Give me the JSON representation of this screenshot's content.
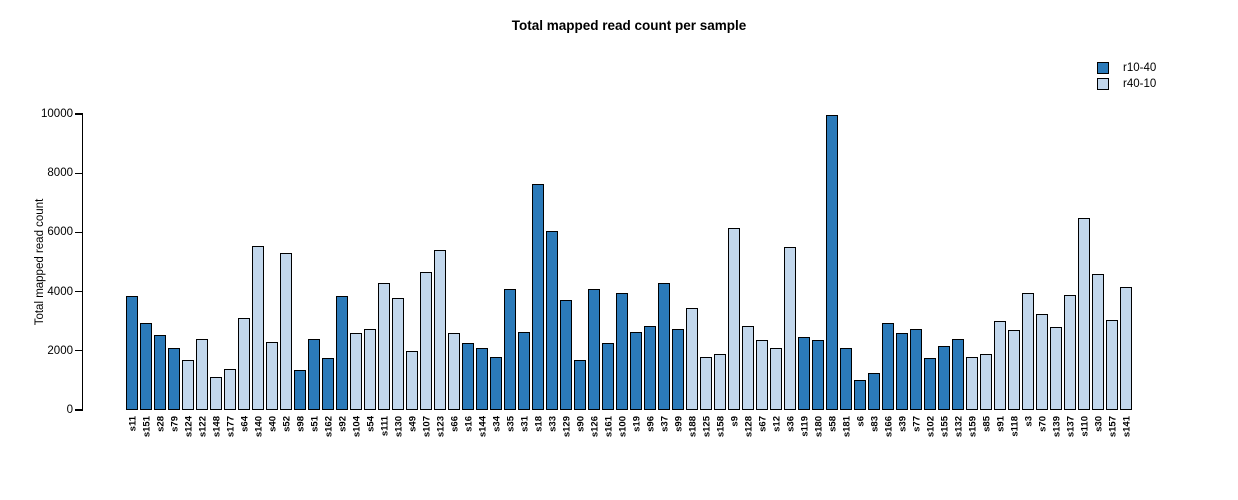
{
  "chart_data": {
    "type": "bar",
    "title": "Total mapped read count per sample",
    "xlabel": "",
    "ylabel": "Total mapped read count",
    "ylim": [
      0,
      10000
    ],
    "yticks": [
      0,
      2000,
      4000,
      6000,
      8000,
      10000
    ],
    "grid": false,
    "legend_position": "top-right",
    "series": [
      {
        "name": "r10-40",
        "color": "#2b7ab9"
      },
      {
        "name": "r40-10",
        "color": "#c2d7ec"
      }
    ],
    "bars": [
      {
        "label": "s11",
        "value": 3850,
        "series": "r10-40"
      },
      {
        "label": "s151",
        "value": 2950,
        "series": "r10-40"
      },
      {
        "label": "s28",
        "value": 2550,
        "series": "r10-40"
      },
      {
        "label": "s79",
        "value": 2100,
        "series": "r10-40"
      },
      {
        "label": "s124",
        "value": 1700,
        "series": "r40-10"
      },
      {
        "label": "s122",
        "value": 2400,
        "series": "r40-10"
      },
      {
        "label": "s148",
        "value": 1100,
        "series": "r40-10"
      },
      {
        "label": "s177",
        "value": 1400,
        "series": "r40-10"
      },
      {
        "label": "s64",
        "value": 3100,
        "series": "r40-10"
      },
      {
        "label": "s140",
        "value": 5550,
        "series": "r40-10"
      },
      {
        "label": "s40",
        "value": 2300,
        "series": "r40-10"
      },
      {
        "label": "s52",
        "value": 5300,
        "series": "r40-10"
      },
      {
        "label": "s98",
        "value": 1350,
        "series": "r10-40"
      },
      {
        "label": "s51",
        "value": 2400,
        "series": "r10-40"
      },
      {
        "label": "s162",
        "value": 1750,
        "series": "r10-40"
      },
      {
        "label": "s92",
        "value": 3850,
        "series": "r10-40"
      },
      {
        "label": "s104",
        "value": 2600,
        "series": "r40-10"
      },
      {
        "label": "s54",
        "value": 2750,
        "series": "r40-10"
      },
      {
        "label": "s111",
        "value": 4300,
        "series": "r40-10"
      },
      {
        "label": "s130",
        "value": 3800,
        "series": "r40-10"
      },
      {
        "label": "s49",
        "value": 2000,
        "series": "r40-10"
      },
      {
        "label": "s107",
        "value": 4650,
        "series": "r40-10"
      },
      {
        "label": "s123",
        "value": 5400,
        "series": "r40-10"
      },
      {
        "label": "s66",
        "value": 2600,
        "series": "r40-10"
      },
      {
        "label": "s16",
        "value": 2250,
        "series": "r10-40"
      },
      {
        "label": "s144",
        "value": 2100,
        "series": "r10-40"
      },
      {
        "label": "s34",
        "value": 1800,
        "series": "r10-40"
      },
      {
        "label": "s35",
        "value": 4100,
        "series": "r10-40"
      },
      {
        "label": "s31",
        "value": 2650,
        "series": "r10-40"
      },
      {
        "label": "s18",
        "value": 7650,
        "series": "r10-40"
      },
      {
        "label": "s33",
        "value": 6050,
        "series": "r10-40"
      },
      {
        "label": "s129",
        "value": 3700,
        "series": "r10-40"
      },
      {
        "label": "s90",
        "value": 1700,
        "series": "r10-40"
      },
      {
        "label": "s126",
        "value": 4100,
        "series": "r10-40"
      },
      {
        "label": "s161",
        "value": 2250,
        "series": "r10-40"
      },
      {
        "label": "s100",
        "value": 3950,
        "series": "r10-40"
      },
      {
        "label": "s19",
        "value": 2650,
        "series": "r10-40"
      },
      {
        "label": "s96",
        "value": 2850,
        "series": "r10-40"
      },
      {
        "label": "s37",
        "value": 4300,
        "series": "r10-40"
      },
      {
        "label": "s99",
        "value": 2750,
        "series": "r10-40"
      },
      {
        "label": "s188",
        "value": 3450,
        "series": "r40-10"
      },
      {
        "label": "s125",
        "value": 1800,
        "series": "r40-10"
      },
      {
        "label": "s158",
        "value": 1900,
        "series": "r40-10"
      },
      {
        "label": "s9",
        "value": 6150,
        "series": "r40-10"
      },
      {
        "label": "s128",
        "value": 2850,
        "series": "r40-10"
      },
      {
        "label": "s67",
        "value": 2350,
        "series": "r40-10"
      },
      {
        "label": "s12",
        "value": 2100,
        "series": "r40-10"
      },
      {
        "label": "s36",
        "value": 5500,
        "series": "r40-10"
      },
      {
        "label": "s119",
        "value": 2450,
        "series": "r10-40"
      },
      {
        "label": "s180",
        "value": 2350,
        "series": "r10-40"
      },
      {
        "label": "s58",
        "value": 9950,
        "series": "r10-40"
      },
      {
        "label": "s181",
        "value": 2100,
        "series": "r10-40"
      },
      {
        "label": "s6",
        "value": 1000,
        "series": "r10-40"
      },
      {
        "label": "s83",
        "value": 1250,
        "series": "r10-40"
      },
      {
        "label": "s166",
        "value": 2950,
        "series": "r10-40"
      },
      {
        "label": "s39",
        "value": 2600,
        "series": "r10-40"
      },
      {
        "label": "s77",
        "value": 2750,
        "series": "r10-40"
      },
      {
        "label": "s102",
        "value": 1750,
        "series": "r10-40"
      },
      {
        "label": "s155",
        "value": 2150,
        "series": "r10-40"
      },
      {
        "label": "s132",
        "value": 2400,
        "series": "r10-40"
      },
      {
        "label": "s159",
        "value": 1800,
        "series": "r40-10"
      },
      {
        "label": "s85",
        "value": 1900,
        "series": "r40-10"
      },
      {
        "label": "s91",
        "value": 3000,
        "series": "r40-10"
      },
      {
        "label": "s118",
        "value": 2700,
        "series": "r40-10"
      },
      {
        "label": "s3",
        "value": 3950,
        "series": "r40-10"
      },
      {
        "label": "s70",
        "value": 3250,
        "series": "r40-10"
      },
      {
        "label": "s139",
        "value": 2800,
        "series": "r40-10"
      },
      {
        "label": "s137",
        "value": 3900,
        "series": "r40-10"
      },
      {
        "label": "s110",
        "value": 6500,
        "series": "r40-10"
      },
      {
        "label": "s30",
        "value": 4600,
        "series": "r40-10"
      },
      {
        "label": "s157",
        "value": 3050,
        "series": "r40-10"
      },
      {
        "label": "s141",
        "value": 4150,
        "series": "r40-10"
      }
    ]
  }
}
